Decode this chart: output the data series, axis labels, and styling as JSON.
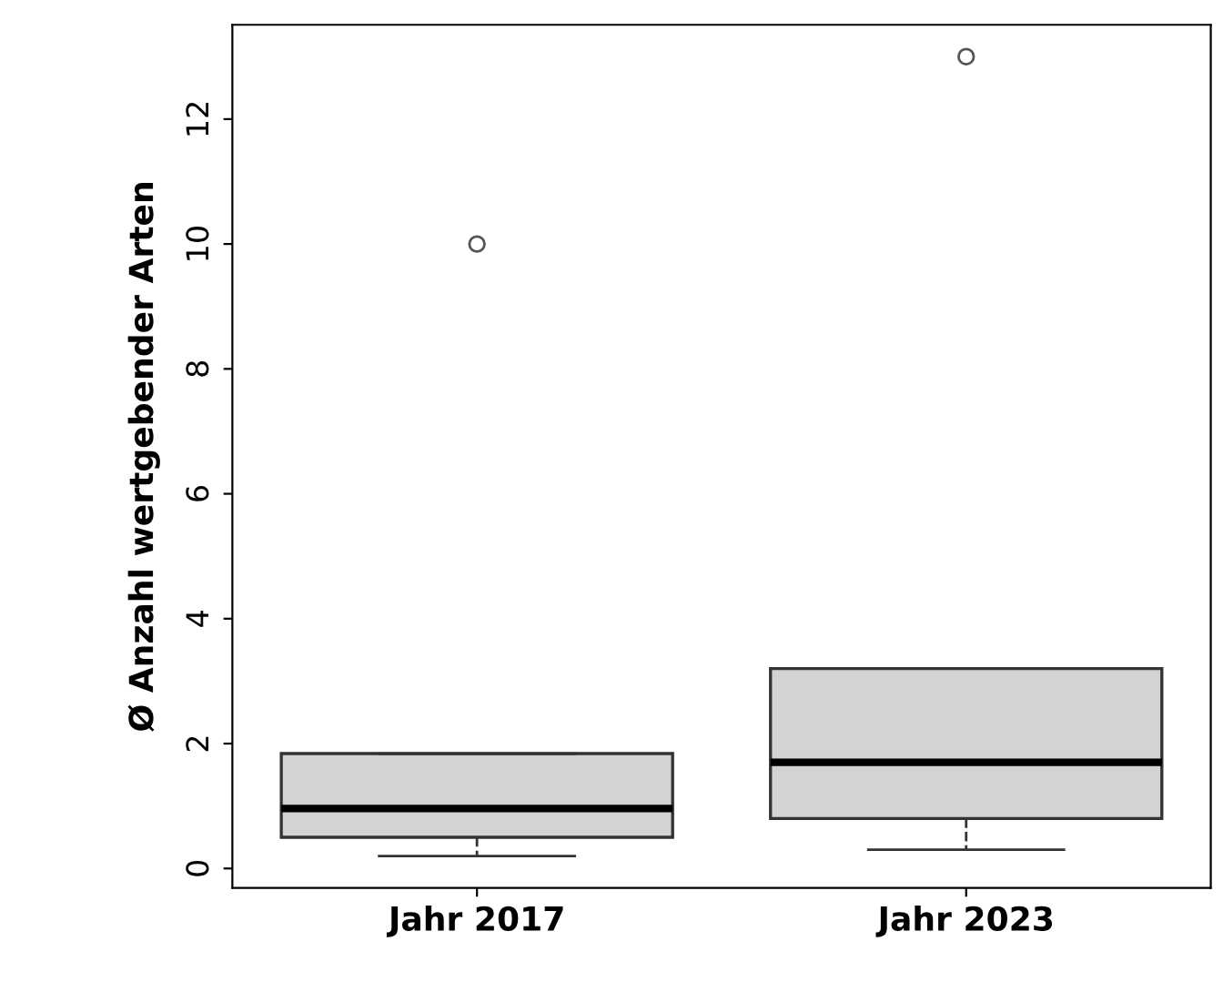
{
  "chart_data": {
    "type": "box",
    "ylabel": "Ø Anzahl wertgebender Arten",
    "categories": [
      "Jahr 2017",
      "Jahr 2023"
    ],
    "color": "#d3d3d3",
    "boxes": [
      {
        "low": 0.2,
        "q1": 0.5,
        "median": 0.96,
        "q3": 1.84,
        "high": 1.84,
        "outliers": [
          10
        ]
      },
      {
        "low": 0.3,
        "q1": 0.8,
        "median": 1.7,
        "q3": 3.2,
        "high": 3.2,
        "outliers": [
          13
        ]
      }
    ],
    "ylim": [
      -0.31,
      13.51
    ],
    "yticks": [
      0,
      2,
      4,
      6,
      8,
      10,
      12
    ],
    "grid": false,
    "marker": "circle"
  }
}
